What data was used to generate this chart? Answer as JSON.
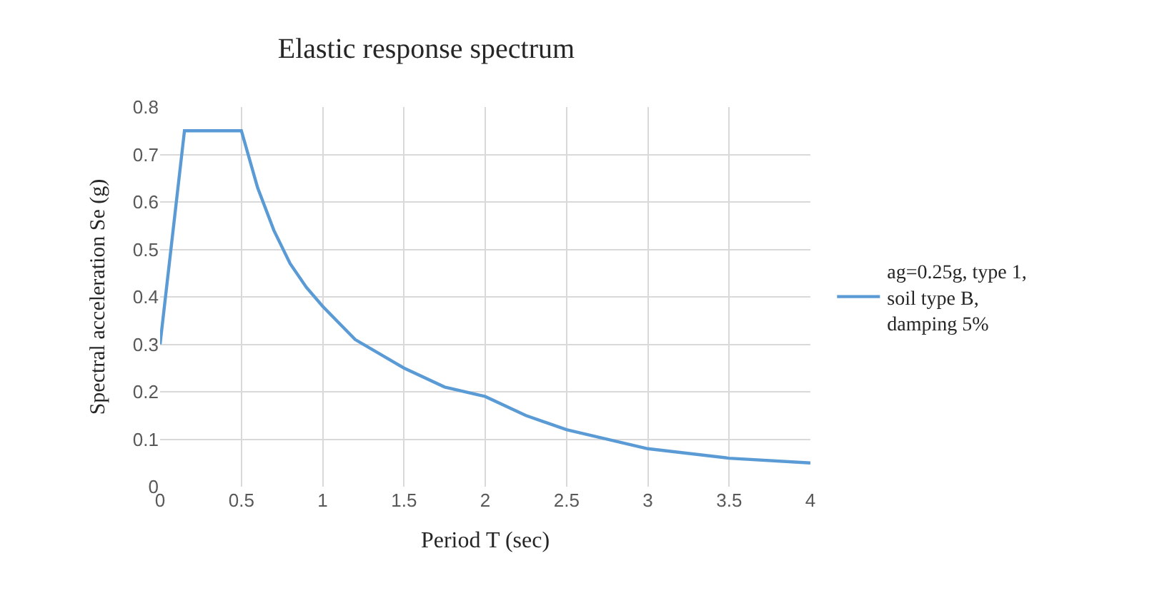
{
  "chart_data": {
    "type": "line",
    "title": "Elastic response spectrum",
    "xlabel": "Period T (sec)",
    "ylabel": "Spectral acceleration Se (g)",
    "xlim": [
      0,
      4
    ],
    "xticks": [
      0,
      0.5,
      1,
      1.5,
      2,
      2.5,
      3,
      3.5,
      4
    ],
    "ylim": [
      0,
      0.8
    ],
    "yticks": [
      0,
      0.1,
      0.2,
      0.3,
      0.4,
      0.5,
      0.6,
      0.7,
      0.8
    ],
    "grid": true,
    "legend": "right",
    "marker": "none",
    "line_style": "solid",
    "series": [
      {
        "name": "ag=0.25g, type 1, soil type B, damping 5%",
        "color": "#5b9bd5",
        "x": [
          0,
          0.15,
          0.5,
          0.6,
          0.7,
          0.8,
          0.9,
          1,
          1.2,
          1.5,
          1.75,
          2,
          2.25,
          2.5,
          3,
          3.5,
          4
        ],
        "values": [
          0.3,
          0.75,
          0.75,
          0.63,
          0.54,
          0.47,
          0.42,
          0.38,
          0.31,
          0.25,
          0.21,
          0.19,
          0.15,
          0.12,
          0.08,
          0.06,
          0.05
        ]
      }
    ]
  }
}
